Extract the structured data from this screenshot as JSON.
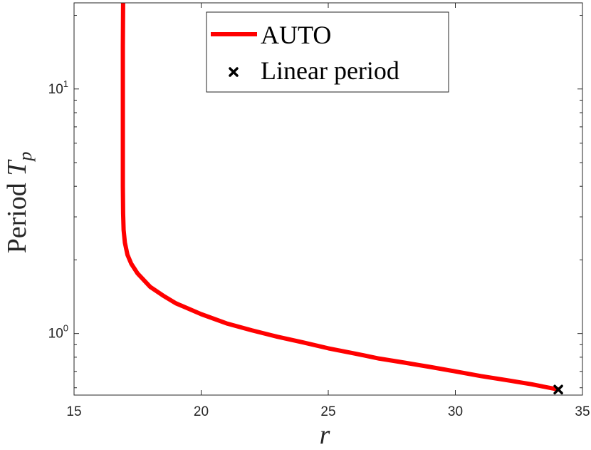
{
  "chart_data": {
    "type": "line",
    "title": "",
    "xlabel": "r",
    "ylabel": {
      "text": "Period ",
      "symbol": "T",
      "subscript": "p"
    },
    "xlim": [
      15,
      35
    ],
    "ylim": [
      0.56,
      22.5
    ],
    "yscale": "log",
    "grid": false,
    "legend_position": "top-center",
    "x_ticks": [
      {
        "value": 15,
        "label": "15"
      },
      {
        "value": 20,
        "label": "20"
      },
      {
        "value": 25,
        "label": "25"
      },
      {
        "value": 30,
        "label": "30"
      },
      {
        "value": 35,
        "label": "35"
      }
    ],
    "y_ticks": [
      {
        "value": 1,
        "base": "10",
        "exponent": "0"
      },
      {
        "value": 10,
        "base": "10",
        "exponent": "1"
      }
    ],
    "series": [
      {
        "name": "AUTO",
        "color": "#ff0000",
        "x": [
          16.93,
          16.92,
          16.92,
          16.92,
          16.92,
          16.93,
          16.95,
          17.0,
          17.1,
          17.25,
          17.5,
          18.0,
          18.5,
          19.0,
          20.0,
          21.0,
          22.0,
          23.0,
          24.0,
          25.0,
          26.0,
          27.0,
          28.0,
          29.0,
          30.0,
          31.0,
          32.0,
          33.0,
          34.05
        ],
        "y": [
          22.5,
          15.0,
          10.0,
          6.5,
          4.0,
          3.1,
          2.65,
          2.35,
          2.1,
          1.93,
          1.76,
          1.55,
          1.43,
          1.33,
          1.2,
          1.1,
          1.03,
          0.97,
          0.92,
          0.87,
          0.83,
          0.79,
          0.76,
          0.73,
          0.7,
          0.67,
          0.645,
          0.62,
          0.59
        ]
      },
      {
        "name": "Linear period",
        "color": "#000000",
        "marker": "x",
        "x": [
          34.05
        ],
        "y": [
          0.59
        ]
      }
    ]
  }
}
